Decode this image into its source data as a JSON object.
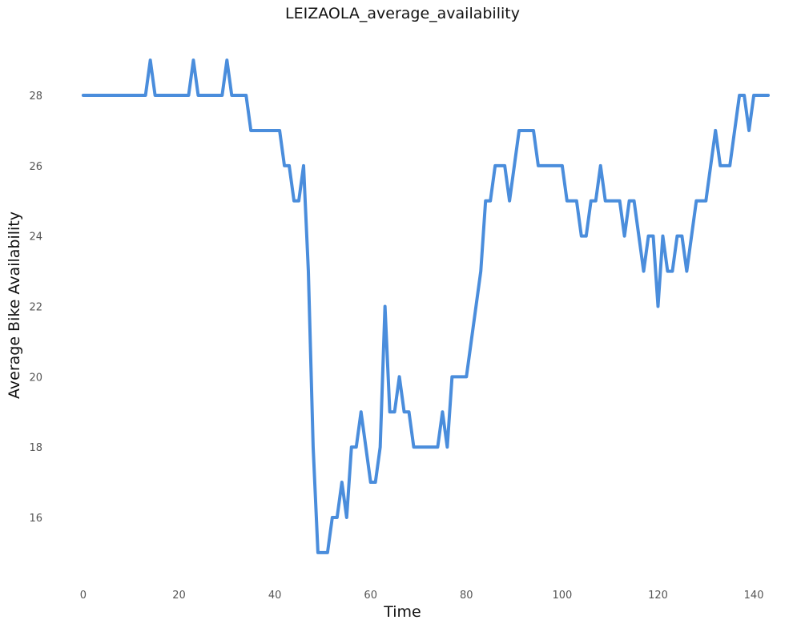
{
  "chart_data": {
    "type": "line",
    "title": "LEIZAOLA_average_availability",
    "xlabel": "Time",
    "ylabel": "Average Bike Availability",
    "xlim": [
      -4,
      144
    ],
    "ylim": [
      14.2,
      29.8
    ],
    "xticks": [
      0,
      20,
      40,
      60,
      80,
      100,
      120,
      140
    ],
    "yticks": [
      16,
      18,
      20,
      22,
      24,
      26,
      28
    ],
    "grid": false,
    "legend": "none",
    "line_color": "#4a8ddc",
    "series": [
      {
        "x": [
          0,
          1,
          2,
          3,
          4,
          5,
          6,
          7,
          8,
          9,
          10,
          11,
          12,
          13,
          14,
          15,
          16,
          17,
          18,
          19,
          20,
          21,
          22,
          23,
          24,
          25,
          26,
          27,
          28,
          29,
          30,
          31,
          32,
          33,
          34,
          35,
          36,
          37,
          38,
          39,
          40,
          41,
          42,
          43,
          44,
          45,
          46,
          47,
          48,
          49,
          50,
          51,
          52,
          53,
          54,
          55,
          56,
          57,
          58,
          59,
          60,
          61,
          62,
          63,
          64,
          65,
          66,
          67,
          68,
          69,
          70,
          71,
          72,
          73,
          74,
          75,
          76,
          77,
          78,
          79,
          80,
          81,
          82,
          83,
          84,
          85,
          86,
          87,
          88,
          89,
          90,
          91,
          92,
          93,
          94,
          95,
          96,
          97,
          98,
          99,
          100,
          101,
          102,
          103,
          104,
          105,
          106,
          107,
          108,
          109,
          110,
          111,
          112,
          113,
          114,
          115,
          116,
          117,
          118,
          119,
          120,
          121,
          122,
          123,
          124,
          125,
          126,
          127,
          128,
          129,
          130,
          131,
          132,
          133,
          134,
          135,
          136,
          137,
          138,
          139,
          140,
          141,
          142,
          143
        ],
        "y": [
          28,
          28,
          28,
          28,
          28,
          28,
          28,
          28,
          28,
          28,
          28,
          28,
          28,
          28,
          29,
          28,
          28,
          28,
          28,
          28,
          28,
          28,
          28,
          29,
          28,
          28,
          28,
          28,
          28,
          28,
          29,
          28,
          28,
          28,
          28,
          27,
          27,
          27,
          27,
          27,
          27,
          27,
          26,
          26,
          25,
          25,
          26,
          23,
          18,
          15,
          15,
          15,
          16,
          16,
          17,
          16,
          18,
          18,
          19,
          18,
          17,
          17,
          18,
          22,
          19,
          19,
          20,
          19,
          19,
          18,
          18,
          18,
          18,
          18,
          18,
          19,
          18,
          20,
          20,
          20,
          20,
          21,
          22,
          23,
          25,
          25,
          26,
          26,
          26,
          25,
          26,
          27,
          27,
          27,
          27,
          26,
          26,
          26,
          26,
          26,
          26,
          25,
          25,
          25,
          24,
          24,
          25,
          25,
          26,
          25,
          25,
          25,
          25,
          24,
          25,
          25,
          24,
          23,
          24,
          24,
          22,
          24,
          23,
          23,
          24,
          24,
          23,
          24,
          25,
          25,
          25,
          26,
          27,
          26,
          26,
          26,
          27,
          28,
          28,
          27,
          28,
          28,
          28,
          28
        ]
      }
    ]
  }
}
